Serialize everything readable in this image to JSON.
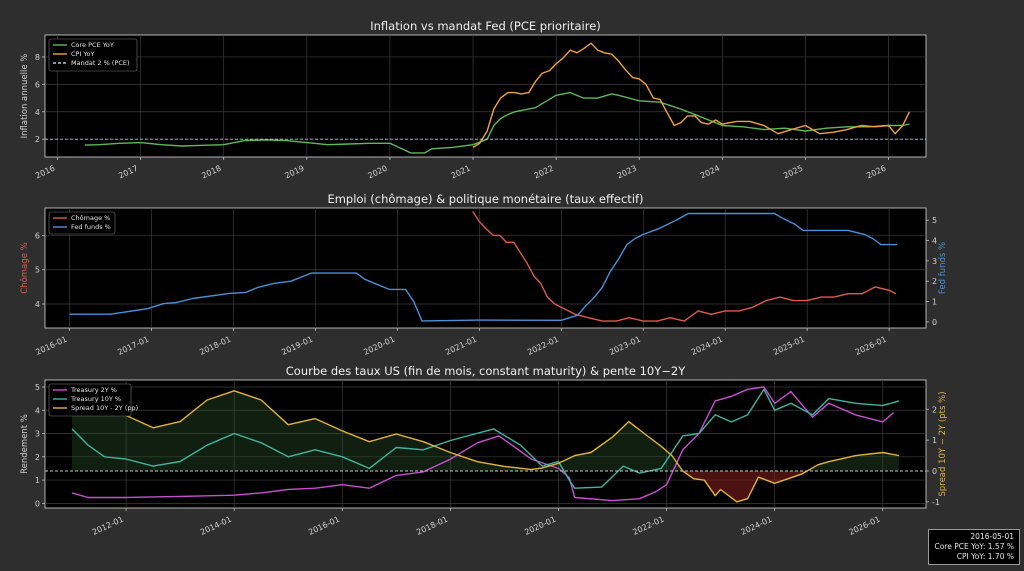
{
  "chart_data": [
    {
      "type": "line",
      "title": "Inflation vs mandat Fed (PCE prioritaire)",
      "ylabel": "Inflation annuelle %",
      "xlabel": "",
      "xlim": [
        2015.85,
        2026.45
      ],
      "ylim": [
        0.7,
        9.6
      ],
      "x_ticks": [
        "2016",
        "2017",
        "2018",
        "2019",
        "2020",
        "2021",
        "2022",
        "2023",
        "2024",
        "2025",
        "2026"
      ],
      "y_ticks": [
        2,
        4,
        6,
        8
      ],
      "grid": true,
      "legend_position": "top-left",
      "series": [
        {
          "name": "Core PCE YoY",
          "color": "#5fb85a",
          "x": [
            2016.33,
            2016.5,
            2016.75,
            2017.0,
            2017.25,
            2017.5,
            2017.75,
            2018.0,
            2018.25,
            2018.5,
            2018.75,
            2019.0,
            2019.25,
            2019.5,
            2019.75,
            2020.0,
            2020.25,
            2020.42,
            2020.5,
            2020.75,
            2021.0,
            2021.17,
            2021.25,
            2021.33,
            2021.42,
            2021.5,
            2021.75,
            2022.0,
            2022.17,
            2022.33,
            2022.5,
            2022.67,
            2022.75,
            2023.0,
            2023.25,
            2023.5,
            2023.75,
            2024.0,
            2024.25,
            2024.5,
            2024.75,
            2025.0,
            2025.25,
            2025.5,
            2025.75,
            2026.0,
            2026.17,
            2026.25
          ],
          "y": [
            1.57,
            1.6,
            1.7,
            1.75,
            1.6,
            1.5,
            1.55,
            1.6,
            1.9,
            1.95,
            1.9,
            1.75,
            1.6,
            1.65,
            1.7,
            1.7,
            1.0,
            1.0,
            1.3,
            1.4,
            1.6,
            2.0,
            3.0,
            3.5,
            3.8,
            4.0,
            4.3,
            5.2,
            5.4,
            5.0,
            5.0,
            5.3,
            5.2,
            4.8,
            4.7,
            4.2,
            3.6,
            3.0,
            2.9,
            2.7,
            2.8,
            2.6,
            2.8,
            2.9,
            2.9,
            3.0,
            3.0,
            3.1
          ]
        },
        {
          "name": "CPI YoY",
          "color": "#f0a33a",
          "x": [
            2021.0,
            2021.08,
            2021.17,
            2021.25,
            2021.33,
            2021.42,
            2021.5,
            2021.58,
            2021.67,
            2021.75,
            2021.83,
            2021.92,
            2022.0,
            2022.08,
            2022.17,
            2022.25,
            2022.33,
            2022.42,
            2022.5,
            2022.58,
            2022.67,
            2022.75,
            2022.83,
            2022.92,
            2023.0,
            2023.08,
            2023.17,
            2023.25,
            2023.33,
            2023.42,
            2023.5,
            2023.58,
            2023.67,
            2023.75,
            2023.83,
            2023.92,
            2024.0,
            2024.17,
            2024.33,
            2024.5,
            2024.67,
            2024.83,
            2025.0,
            2025.17,
            2025.33,
            2025.5,
            2025.67,
            2025.83,
            2026.0,
            2026.08,
            2026.17,
            2026.25
          ],
          "y": [
            1.4,
            1.7,
            2.6,
            4.2,
            5.0,
            5.4,
            5.4,
            5.3,
            5.4,
            6.2,
            6.8,
            7.0,
            7.5,
            7.9,
            8.5,
            8.3,
            8.6,
            9.0,
            8.5,
            8.3,
            8.2,
            7.7,
            7.1,
            6.5,
            6.4,
            6.0,
            5.0,
            4.9,
            4.0,
            3.0,
            3.2,
            3.7,
            3.7,
            3.2,
            3.1,
            3.4,
            3.1,
            3.3,
            3.3,
            3.0,
            2.4,
            2.7,
            3.0,
            2.4,
            2.5,
            2.7,
            3.0,
            2.9,
            3.0,
            2.4,
            3.0,
            4.0
          ]
        },
        {
          "name": "Mandat 2 % (PCE)",
          "color": "#b8c4d6",
          "dashed": true,
          "x": [
            2015.85,
            2026.45
          ],
          "y": [
            2,
            2
          ]
        }
      ]
    },
    {
      "type": "line",
      "title": "Emploi (chômage) & politique monétaire (taux effectif)",
      "ylabel": "Chômage %",
      "ylabel_right": "Fed funds %",
      "xlim": [
        2015.7,
        2026.45
      ],
      "ylim": [
        3.3,
        6.8
      ],
      "ylim_right": [
        -0.3,
        5.6
      ],
      "x_ticks": [
        "2016-01",
        "2017-01",
        "2018-01",
        "2019-01",
        "2020-01",
        "2021-01",
        "2022-01",
        "2023-01",
        "2024-01",
        "2025-01",
        "2026-01"
      ],
      "y_ticks": [
        4,
        5,
        6
      ],
      "y_ticks_right": [
        0,
        1,
        2,
        3,
        4,
        5
      ],
      "grid": true,
      "legend_position": "top-left",
      "series": [
        {
          "name": "Chômage %",
          "color": "#e05a4e",
          "axis": "left",
          "x": [
            2020.92,
            2021.0,
            2021.08,
            2021.17,
            2021.25,
            2021.33,
            2021.42,
            2021.5,
            2021.58,
            2021.67,
            2021.75,
            2021.83,
            2021.92,
            2022.0,
            2022.17,
            2022.33,
            2022.5,
            2022.67,
            2022.83,
            2023.0,
            2023.17,
            2023.33,
            2023.5,
            2023.67,
            2023.83,
            2024.0,
            2024.17,
            2024.33,
            2024.5,
            2024.67,
            2024.83,
            2025.0,
            2025.17,
            2025.33,
            2025.5,
            2025.67,
            2025.83,
            2026.0,
            2026.08
          ],
          "y": [
            6.7,
            6.4,
            6.2,
            6.0,
            6.0,
            5.8,
            5.8,
            5.5,
            5.2,
            4.8,
            4.6,
            4.2,
            4.0,
            3.9,
            3.7,
            3.6,
            3.5,
            3.5,
            3.6,
            3.5,
            3.5,
            3.6,
            3.5,
            3.8,
            3.7,
            3.8,
            3.8,
            3.9,
            4.1,
            4.2,
            4.1,
            4.1,
            4.2,
            4.2,
            4.3,
            4.3,
            4.5,
            4.4,
            4.3
          ]
        },
        {
          "name": "Fed funds %",
          "color": "#4a90d9",
          "axis": "right",
          "x": [
            2016.0,
            2016.5,
            2016.95,
            2017.15,
            2017.3,
            2017.5,
            2017.95,
            2018.15,
            2018.3,
            2018.5,
            2018.7,
            2018.95,
            2019.5,
            2019.6,
            2019.75,
            2019.9,
            2020.1,
            2020.2,
            2020.3,
            2021.0,
            2022.0,
            2022.2,
            2022.3,
            2022.4,
            2022.5,
            2022.6,
            2022.7,
            2022.8,
            2022.9,
            2023.0,
            2023.2,
            2023.4,
            2023.55,
            2024.0,
            2024.6,
            2024.7,
            2024.85,
            2024.95,
            2025.5,
            2025.7,
            2025.8,
            2025.9,
            2026.1
          ],
          "y": [
            0.38,
            0.38,
            0.65,
            0.9,
            0.95,
            1.15,
            1.4,
            1.45,
            1.7,
            1.9,
            2.0,
            2.4,
            2.4,
            2.1,
            1.85,
            1.6,
            1.6,
            1.0,
            0.05,
            0.09,
            0.08,
            0.33,
            0.8,
            1.2,
            1.7,
            2.5,
            3.1,
            3.8,
            4.1,
            4.3,
            4.6,
            5.0,
            5.33,
            5.33,
            5.33,
            5.1,
            4.8,
            4.5,
            4.5,
            4.3,
            4.1,
            3.8,
            3.8
          ]
        }
      ]
    },
    {
      "type": "line",
      "title": "Courbe des taux US (fin de mois, constant maturity) & pente 10Y−2Y",
      "ylabel": "Rendement %",
      "ylabel_right": "Spread 10Y − 2Y (pts %)",
      "xlim": [
        2010.5,
        2026.8
      ],
      "ylim": [
        -0.2,
        5.3
      ],
      "ylim_right": [
        -1.2,
        2.95
      ],
      "x_ticks": [
        "2012-01",
        "2014-01",
        "2016-01",
        "2018-01",
        "2020-01",
        "2022-01",
        "2024-01",
        "2026-01"
      ],
      "x_ticks_pos": [
        2012,
        2014,
        2016,
        2018,
        2020,
        2022,
        2024,
        2026
      ],
      "y_ticks": [
        0,
        1,
        2,
        3,
        4,
        5
      ],
      "y_ticks_right": [
        -1,
        0,
        1,
        2
      ],
      "grid": true,
      "legend_position": "top-left",
      "series": [
        {
          "name": "Treasury 2Y %",
          "color": "#c94fd1",
          "axis": "left",
          "x": [
            2011.0,
            2011.3,
            2012.0,
            2013.0,
            2014.0,
            2014.5,
            2015.0,
            2015.5,
            2016.0,
            2016.5,
            2017.0,
            2017.5,
            2018.0,
            2018.5,
            2018.9,
            2019.5,
            2020.0,
            2020.2,
            2020.3,
            2021.0,
            2021.5,
            2021.8,
            2022.0,
            2022.3,
            2022.6,
            2022.9,
            2023.2,
            2023.5,
            2023.8,
            2024.0,
            2024.3,
            2024.7,
            2025.0,
            2025.5,
            2026.0,
            2026.2
          ],
          "y": [
            0.45,
            0.25,
            0.25,
            0.3,
            0.35,
            0.45,
            0.6,
            0.65,
            0.8,
            0.65,
            1.2,
            1.35,
            1.9,
            2.6,
            2.9,
            1.9,
            1.5,
            1.1,
            0.25,
            0.12,
            0.2,
            0.5,
            0.8,
            2.3,
            3.0,
            4.4,
            4.6,
            4.9,
            5.0,
            4.3,
            4.8,
            3.7,
            4.3,
            3.8,
            3.5,
            3.9
          ]
        },
        {
          "name": "Treasury 10Y %",
          "color": "#3fb5a0",
          "axis": "left",
          "x": [
            2011.0,
            2011.3,
            2011.6,
            2012.0,
            2012.5,
            2013.0,
            2013.5,
            2014.0,
            2014.5,
            2015.0,
            2015.5,
            2016.0,
            2016.5,
            2017.0,
            2017.5,
            2018.0,
            2018.8,
            2019.3,
            2019.7,
            2020.0,
            2020.2,
            2020.3,
            2020.8,
            2021.2,
            2021.5,
            2021.9,
            2022.3,
            2022.6,
            2022.9,
            2023.2,
            2023.5,
            2023.8,
            2024.0,
            2024.3,
            2024.7,
            2025.0,
            2025.5,
            2026.0,
            2026.3
          ],
          "y": [
            3.2,
            2.5,
            2.0,
            1.9,
            1.6,
            1.8,
            2.5,
            3.0,
            2.6,
            2.0,
            2.3,
            2.0,
            1.5,
            2.4,
            2.3,
            2.7,
            3.2,
            2.5,
            1.6,
            1.8,
            1.0,
            0.65,
            0.7,
            1.6,
            1.3,
            1.5,
            2.9,
            3.0,
            3.8,
            3.5,
            3.8,
            4.9,
            4.0,
            4.3,
            3.8,
            4.5,
            4.3,
            4.2,
            4.4
          ]
        },
        {
          "name": "Spread 10Y - 2Y (pp)",
          "color": "#e3b341",
          "axis": "right",
          "x": [
            2011.0,
            2011.5,
            2012.0,
            2012.5,
            2013.0,
            2013.5,
            2014.0,
            2014.5,
            2015.0,
            2015.5,
            2016.0,
            2016.5,
            2017.0,
            2017.5,
            2018.0,
            2018.5,
            2019.0,
            2019.5,
            2019.7,
            2020.0,
            2020.3,
            2020.6,
            2021.0,
            2021.3,
            2021.6,
            2021.9,
            2022.1,
            2022.3,
            2022.5,
            2022.7,
            2022.9,
            2023.0,
            2023.3,
            2023.5,
            2023.7,
            2024.0,
            2024.5,
            2024.8,
            2025.0,
            2025.5,
            2026.0,
            2026.3
          ],
          "y": [
            2.75,
            2.5,
            1.8,
            1.4,
            1.6,
            2.3,
            2.6,
            2.3,
            1.5,
            1.7,
            1.3,
            0.95,
            1.2,
            0.95,
            0.6,
            0.3,
            0.15,
            0.05,
            0.1,
            0.25,
            0.5,
            0.6,
            1.1,
            1.6,
            1.2,
            0.8,
            0.5,
            0.0,
            -0.25,
            -0.3,
            -0.8,
            -0.6,
            -1.0,
            -0.9,
            -0.2,
            -0.4,
            -0.1,
            0.2,
            0.3,
            0.5,
            0.6,
            0.5
          ]
        },
        {
          "name": "",
          "color": "#c8c8c8",
          "dashed": true,
          "axis": "right",
          "x": [
            2010.5,
            2026.8
          ],
          "y": [
            0,
            0
          ]
        }
      ]
    }
  ],
  "tooltip": {
    "date": "2016-05-01",
    "core_pce": "Core PCE YoY: 1.57 %",
    "cpi": "CPI YoY: 1.70 %"
  }
}
